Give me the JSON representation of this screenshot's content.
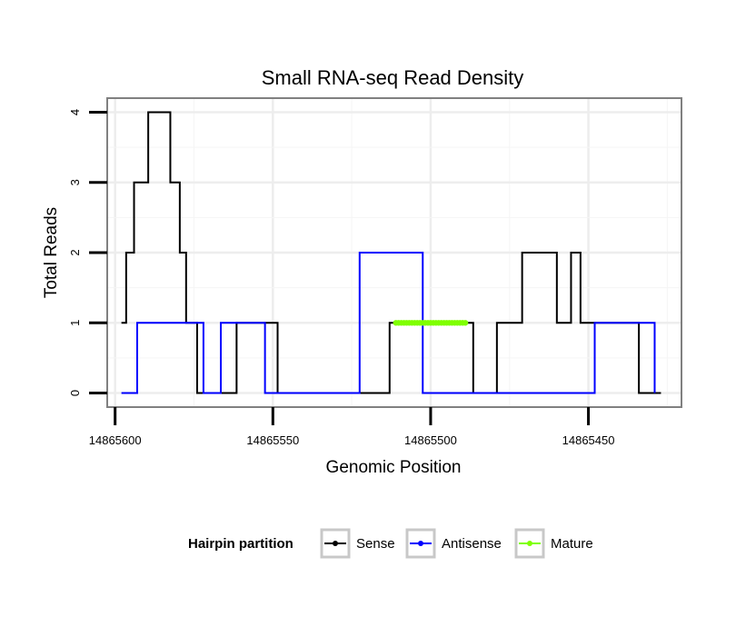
{
  "chart_data": {
    "type": "line",
    "title": "Small RNA-seq Read Density",
    "xlabel": "Genomic Position",
    "ylabel": "Total Reads",
    "x_reversed": true,
    "xlim": [
      14865602.5,
      14865420.5
    ],
    "ylim": [
      -0.2,
      4.2
    ],
    "x_ticks": [
      14865600,
      14865550,
      14865500,
      14865450
    ],
    "x_tick_labels": [
      "14865600",
      "14865550",
      "14865500",
      "14865450"
    ],
    "y_ticks": [
      0,
      1,
      2,
      3,
      4
    ],
    "y_tick_labels": [
      "0",
      "1",
      "2",
      "3",
      "4"
    ],
    "grid": true,
    "legend": {
      "title": "Hairpin partition",
      "position": "bottom",
      "items": [
        {
          "label": "Sense",
          "color": "#000000"
        },
        {
          "label": "Antisense",
          "color": "#0000ff"
        },
        {
          "label": "Mature",
          "color": "#7fff00"
        }
      ]
    },
    "series": [
      {
        "name": "Sense",
        "color": "#000000",
        "points": [
          [
            14865598,
            1
          ],
          [
            14865596.5,
            1
          ],
          [
            14865596.5,
            2
          ],
          [
            14865594,
            2
          ],
          [
            14865594,
            3
          ],
          [
            14865589.5,
            3
          ],
          [
            14865589.5,
            4
          ],
          [
            14865582.5,
            4
          ],
          [
            14865582.5,
            3
          ],
          [
            14865579.5,
            3
          ],
          [
            14865579.5,
            2
          ],
          [
            14865577.5,
            2
          ],
          [
            14865577.5,
            1
          ],
          [
            14865574,
            1
          ],
          [
            14865574,
            0
          ],
          [
            14865561.5,
            0
          ],
          [
            14865561.5,
            1
          ],
          [
            14865548.5,
            1
          ],
          [
            14865548.5,
            0
          ],
          [
            14865513,
            0
          ],
          [
            14865513,
            1
          ],
          [
            14865486.5,
            1
          ],
          [
            14865486.5,
            0
          ],
          [
            14865479,
            0
          ],
          [
            14865479,
            1
          ],
          [
            14865471,
            1
          ],
          [
            14865471,
            2
          ],
          [
            14865460,
            2
          ],
          [
            14865460,
            1
          ],
          [
            14865455.5,
            1
          ],
          [
            14865455.5,
            2
          ],
          [
            14865452.5,
            2
          ],
          [
            14865452.5,
            1
          ],
          [
            14865434,
            1
          ],
          [
            14865434,
            0
          ],
          [
            14865427,
            0
          ]
        ]
      },
      {
        "name": "Antisense",
        "color": "#0000ff",
        "points": [
          [
            14865598,
            0
          ],
          [
            14865593,
            0
          ],
          [
            14865593,
            1
          ],
          [
            14865572,
            1
          ],
          [
            14865572,
            0
          ],
          [
            14865566.5,
            0
          ],
          [
            14865566.5,
            1
          ],
          [
            14865552.5,
            1
          ],
          [
            14865552.5,
            0
          ],
          [
            14865522.5,
            0
          ],
          [
            14865522.5,
            2
          ],
          [
            14865502.5,
            2
          ],
          [
            14865502.5,
            0
          ],
          [
            14865448,
            0
          ],
          [
            14865448,
            1
          ],
          [
            14865429,
            1
          ],
          [
            14865429,
            0
          ]
        ]
      },
      {
        "name": "Mature",
        "color": "#7fff00",
        "points": [
          [
            14865511,
            1
          ],
          [
            14865489,
            1
          ]
        ]
      }
    ]
  }
}
